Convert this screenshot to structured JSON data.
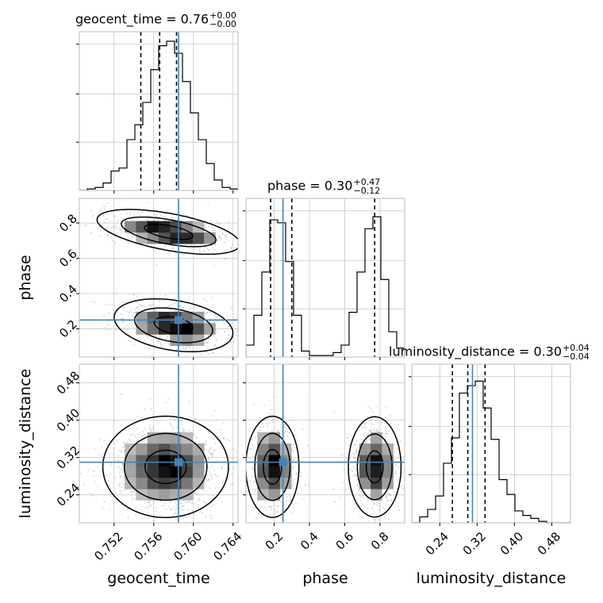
{
  "chart_data": {
    "type": "corner",
    "parameters": [
      "geocent_time",
      "phase",
      "luminosity_distance"
    ],
    "truths": {
      "geocent_time": 0.7585,
      "phase": 0.25,
      "luminosity_distance": 0.31
    },
    "titles": [
      {
        "param": "geocent_time",
        "prefix": "geocent_time = 0.76",
        "upper": "+0.00",
        "lower": "−0.00"
      },
      {
        "param": "phase",
        "prefix": "phase = 0.30",
        "upper": "+0.47",
        "lower": "−0.12"
      },
      {
        "param": "luminosity_distance",
        "prefix": "luminosity_distance = 0.30",
        "upper": "+0.04",
        "lower": "−0.04"
      }
    ],
    "axes": {
      "geocent_time": {
        "range": [
          0.7485,
          0.7645
        ],
        "ticks": [
          0.752,
          0.756,
          0.76,
          0.764
        ],
        "tick_labels": [
          "0.752",
          "0.756",
          "0.760",
          "0.764"
        ],
        "label": "geocent_time"
      },
      "phase": {
        "range": [
          0.04,
          0.94
        ],
        "ticks": [
          0.2,
          0.4,
          0.6,
          0.8
        ],
        "tick_labels": [
          "0.2",
          "0.4",
          "0.6",
          "0.8"
        ],
        "label": "phase"
      },
      "luminosity_distance": {
        "range": [
          0.18,
          0.52
        ],
        "ticks": [
          0.24,
          0.32,
          0.4,
          0.48
        ],
        "tick_labels": [
          "0.24",
          "0.32",
          "0.40",
          "0.48"
        ],
        "label": "luminosity_distance"
      }
    },
    "histograms": {
      "geocent_time": {
        "bin_edges": [
          0.7485,
          0.7493,
          0.7501,
          0.7509,
          0.7517,
          0.7525,
          0.7533,
          0.7541,
          0.7549,
          0.7557,
          0.7565,
          0.7573,
          0.7581,
          0.7589,
          0.7597,
          0.7605,
          0.7613,
          0.7621,
          0.7629,
          0.7637,
          0.7645
        ],
        "counts": [
          0,
          0.01,
          0.02,
          0.05,
          0.13,
          0.15,
          0.34,
          0.44,
          0.59,
          0.81,
          0.97,
          1.0,
          0.92,
          0.73,
          0.52,
          0.34,
          0.18,
          0.07,
          0.02,
          0.01
        ],
        "quantiles": [
          0.7547,
          0.7566,
          0.7583
        ]
      },
      "phase": {
        "bin_edges": [
          0.04,
          0.085,
          0.13,
          0.175,
          0.22,
          0.265,
          0.31,
          0.355,
          0.4,
          0.445,
          0.49,
          0.535,
          0.58,
          0.625,
          0.67,
          0.715,
          0.76,
          0.805,
          0.85,
          0.895,
          0.94
        ],
        "counts": [
          0.08,
          0.28,
          0.57,
          0.92,
          0.9,
          0.64,
          0.28,
          0.04,
          0.01,
          0.01,
          0.01,
          0.03,
          0.08,
          0.3,
          0.57,
          0.86,
          0.94,
          0.52,
          0.17,
          0.06
        ],
        "quantiles": [
          0.18,
          0.3,
          0.77
        ]
      },
      "luminosity_distance": {
        "bin_edges": [
          0.18,
          0.197,
          0.214,
          0.231,
          0.248,
          0.265,
          0.282,
          0.299,
          0.316,
          0.333,
          0.35,
          0.367,
          0.384,
          0.401,
          0.418,
          0.435,
          0.452,
          0.469,
          0.486,
          0.503,
          0.52
        ],
        "counts": [
          0,
          0.04,
          0.09,
          0.18,
          0.4,
          0.57,
          0.87,
          0.92,
          0.95,
          0.77,
          0.56,
          0.29,
          0.19,
          0.08,
          0.05,
          0.03,
          0.01,
          0,
          0,
          0
        ],
        "quantiles": [
          0.267,
          0.3,
          0.337
        ]
      }
    },
    "joint": [
      {
        "x": "geocent_time",
        "y": "phase",
        "modes": [
          {
            "cx": 0.7575,
            "cy": 0.75,
            "sx": 0.0024,
            "sy": 0.042,
            "rho": -0.55,
            "weight": 0.48
          },
          {
            "cx": 0.758,
            "cy": 0.22,
            "sx": 0.002,
            "sy": 0.05,
            "rho": -0.3,
            "weight": 0.52
          }
        ]
      },
      {
        "x": "geocent_time",
        "y": "luminosity_distance",
        "modes": [
          {
            "cx": 0.7572,
            "cy": 0.3,
            "sx": 0.0021,
            "sy": 0.036,
            "rho": 0.0,
            "weight": 1.0
          }
        ]
      },
      {
        "x": "phase",
        "y": "luminosity_distance",
        "modes": [
          {
            "cx": 0.19,
            "cy": 0.3,
            "sx": 0.05,
            "sy": 0.036,
            "rho": 0.0,
            "weight": 0.52
          },
          {
            "cx": 0.77,
            "cy": 0.3,
            "sx": 0.05,
            "sy": 0.036,
            "rho": 0.0,
            "weight": 0.48
          }
        ]
      }
    ],
    "colors": {
      "truth": "#4682b4",
      "hist": "#000000",
      "grid": "#c8c8c8",
      "scatter": "#999999"
    },
    "grid": true
  }
}
